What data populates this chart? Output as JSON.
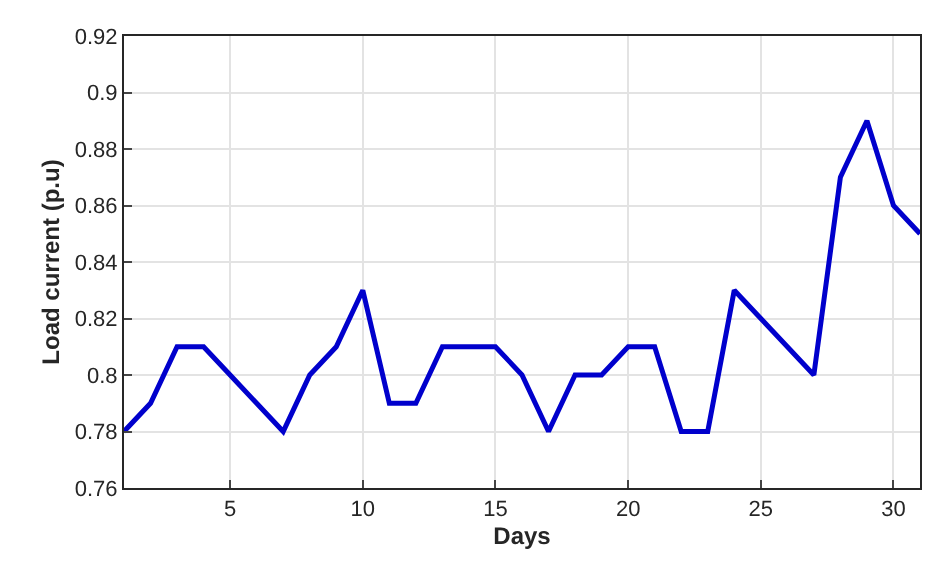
{
  "chart_data": {
    "type": "line",
    "xlabel": "Days",
    "ylabel": "Load current (p.u)",
    "x": [
      1,
      2,
      3,
      4,
      5,
      6,
      7,
      8,
      9,
      10,
      11,
      12,
      13,
      14,
      15,
      16,
      17,
      18,
      19,
      20,
      21,
      22,
      23,
      24,
      25,
      26,
      27,
      28,
      29,
      30,
      31
    ],
    "series": [
      {
        "color": "#0000cc",
        "values": [
          0.78,
          0.79,
          0.81,
          0.81,
          0.8,
          0.79,
          0.78,
          0.8,
          0.81,
          0.83,
          0.79,
          0.79,
          0.81,
          0.81,
          0.81,
          0.8,
          0.78,
          0.8,
          0.8,
          0.81,
          0.81,
          0.78,
          0.78,
          0.83,
          0.82,
          0.81,
          0.8,
          0.87,
          0.89,
          0.86,
          0.85
        ]
      }
    ],
    "xlim": [
      1,
      31
    ],
    "xticks": [
      5,
      10,
      15,
      20,
      25,
      30
    ],
    "ylim": [
      0.76,
      0.92
    ],
    "yticks": [
      0.76,
      0.78,
      0.8,
      0.82,
      0.84,
      0.86,
      0.88,
      0.9,
      0.92
    ],
    "grid": true,
    "line_style": "solid",
    "marker": "none"
  }
}
